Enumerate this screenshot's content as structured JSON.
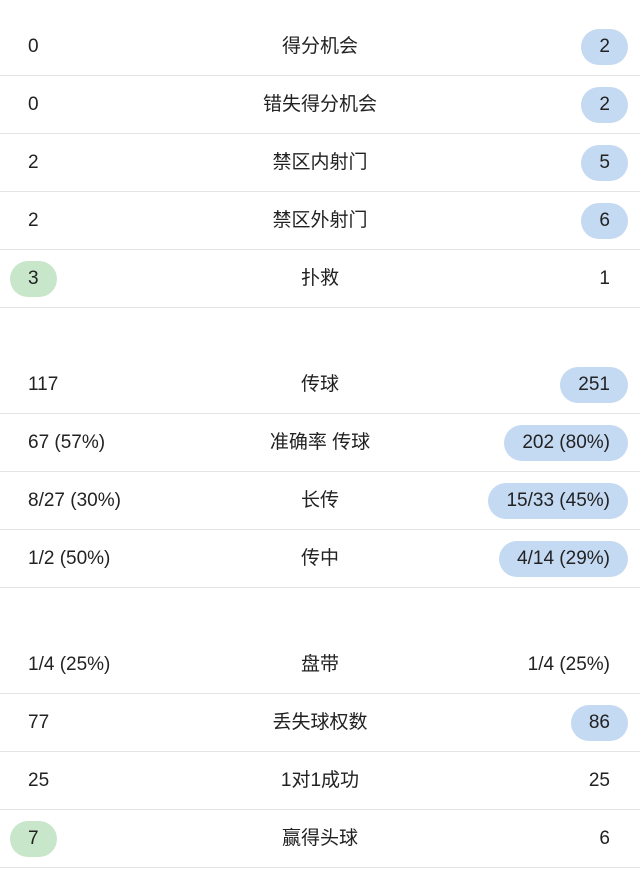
{
  "colors": {
    "home_highlight": "#c8e6c9",
    "away_highlight": "#c4d9f2"
  },
  "groups": [
    {
      "rows": [
        {
          "label": "得分机会",
          "home": "0",
          "away": "2",
          "winner": "away"
        },
        {
          "label": "错失得分机会",
          "home": "0",
          "away": "2",
          "winner": "away"
        },
        {
          "label": "禁区内射门",
          "home": "2",
          "away": "5",
          "winner": "away"
        },
        {
          "label": "禁区外射门",
          "home": "2",
          "away": "6",
          "winner": "away"
        },
        {
          "label": "扑救",
          "home": "3",
          "away": "1",
          "winner": "home"
        }
      ]
    },
    {
      "rows": [
        {
          "label": "传球",
          "home": "117",
          "away": "251",
          "winner": "away"
        },
        {
          "label": "准确率 传球",
          "home": "67 (57%)",
          "away": "202 (80%)",
          "winner": "away"
        },
        {
          "label": "长传",
          "home": "8/27 (30%)",
          "away": "15/33 (45%)",
          "winner": "away"
        },
        {
          "label": "传中",
          "home": "1/2 (50%)",
          "away": "4/14 (29%)",
          "winner": "away"
        }
      ]
    },
    {
      "rows": [
        {
          "label": "盘带",
          "home": "1/4 (25%)",
          "away": "1/4 (25%)",
          "winner": "none"
        },
        {
          "label": "丢失球权数",
          "home": "77",
          "away": "86",
          "winner": "away"
        },
        {
          "label": "1对1成功",
          "home": "25",
          "away": "25",
          "winner": "none"
        },
        {
          "label": "赢得头球",
          "home": "7",
          "away": "6",
          "winner": "home"
        }
      ]
    }
  ]
}
